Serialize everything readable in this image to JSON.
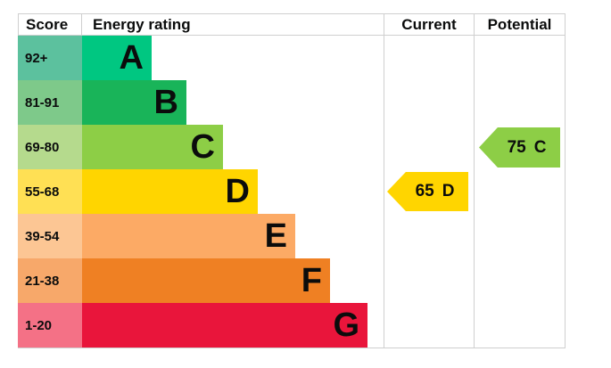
{
  "header": {
    "score": "Score",
    "energy_rating": "Energy rating",
    "current": "Current",
    "potential": "Potential"
  },
  "bands": [
    {
      "id": "a",
      "score_range": "92+",
      "letter": "A",
      "bar_color": "#00c781",
      "score_color": "#5cc19e"
    },
    {
      "id": "b",
      "score_range": "81-91",
      "letter": "B",
      "bar_color": "#19b459",
      "score_color": "#7ec98a"
    },
    {
      "id": "c",
      "score_range": "69-80",
      "letter": "C",
      "bar_color": "#8dce46",
      "score_color": "#b5da8d"
    },
    {
      "id": "d",
      "score_range": "55-68",
      "letter": "D",
      "bar_color": "#ffd500",
      "score_color": "#ffe054"
    },
    {
      "id": "e",
      "score_range": "39-54",
      "letter": "E",
      "bar_color": "#fcaa65",
      "score_color": "#fcc694"
    },
    {
      "id": "f",
      "score_range": "21-38",
      "letter": "F",
      "bar_color": "#ef8023",
      "score_color": "#f7a86a"
    },
    {
      "id": "g",
      "score_range": "1-20",
      "letter": "G",
      "bar_color": "#e9153b",
      "score_color": "#f47186"
    }
  ],
  "current": {
    "value": "65",
    "letter": "D",
    "color": "#ffd500",
    "band_index": 3
  },
  "potential": {
    "value": "75",
    "letter": "C",
    "color": "#8dce46",
    "band_index": 2
  },
  "chart_data": {
    "type": "bar",
    "orientation": "horizontal",
    "title": "Energy efficiency rating chart (EPC)",
    "columns": [
      "Score",
      "Energy rating",
      "Current",
      "Potential"
    ],
    "categories": [
      "A",
      "B",
      "C",
      "D",
      "E",
      "F",
      "G"
    ],
    "score_ranges": [
      "92+",
      "81-91",
      "69-80",
      "55-68",
      "39-54",
      "21-38",
      "1-20"
    ],
    "band_colors": [
      "#00c781",
      "#19b459",
      "#8dce46",
      "#ffd500",
      "#fcaa65",
      "#ef8023",
      "#e9153b"
    ],
    "markers": [
      {
        "column": "Current",
        "score": 65,
        "band": "D",
        "color": "#ffd500"
      },
      {
        "column": "Potential",
        "score": 75,
        "band": "C",
        "color": "#8dce46"
      }
    ],
    "legend_position": "none",
    "grid": false
  }
}
